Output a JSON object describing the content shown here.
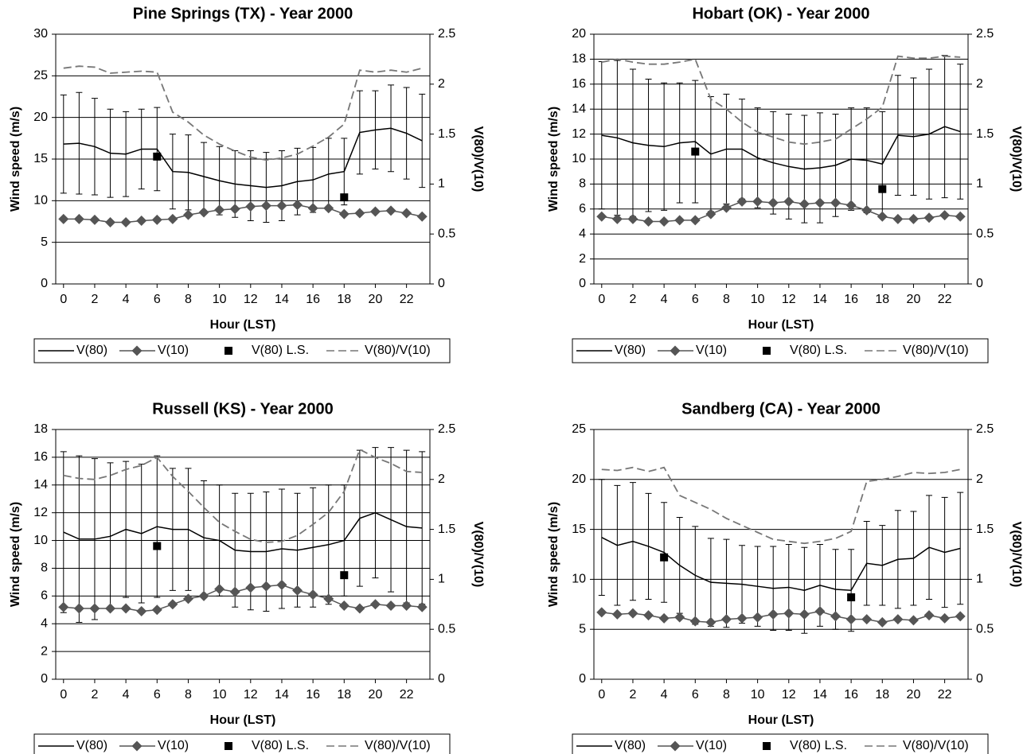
{
  "chart_data": [
    {
      "type": "line",
      "title": "Pine Springs (TX) - Year 2000",
      "xlabel": "Hour (LST)",
      "ylabel": "Wind speed (m/s)",
      "y2label": "V(80)/V(10)",
      "x": [
        0,
        1,
        2,
        3,
        4,
        5,
        6,
        7,
        8,
        9,
        10,
        11,
        12,
        13,
        14,
        15,
        16,
        17,
        18,
        19,
        20,
        21,
        22,
        23
      ],
      "xlim": [
        -0.5,
        23.5
      ],
      "xticks": [
        0,
        2,
        4,
        6,
        8,
        10,
        12,
        14,
        16,
        18,
        20,
        22
      ],
      "ylim": [
        0,
        30
      ],
      "yticks": [
        0,
        5,
        10,
        15,
        20,
        25,
        30
      ],
      "y2lim": [
        0,
        2.5
      ],
      "y2ticks": [
        0,
        0.5,
        1,
        1.5,
        2,
        2.5
      ],
      "grid": true,
      "legend": "bottom",
      "series": [
        {
          "name": "V(80)",
          "color": "#000000",
          "line": "solid",
          "marker": "none",
          "values": [
            16.8,
            16.9,
            16.5,
            15.7,
            15.6,
            16.2,
            16.2,
            13.5,
            13.4,
            12.9,
            12.4,
            12.0,
            11.8,
            11.6,
            11.8,
            12.3,
            12.5,
            13.2,
            13.5,
            18.2,
            18.5,
            18.7,
            18.1,
            17.2
          ],
          "errors": [
            5.9,
            6.1,
            5.8,
            5.3,
            5.1,
            4.8,
            5.0,
            4.5,
            4.5,
            4.1,
            4.1,
            4.0,
            4.2,
            4.2,
            4.2,
            4.0,
            3.9,
            4.3,
            4.0,
            5.0,
            4.7,
            5.2,
            5.5,
            5.6
          ]
        },
        {
          "name": "V(10)",
          "color": "#555555",
          "line": "solid",
          "marker": "diamond",
          "values": [
            7.8,
            7.8,
            7.7,
            7.4,
            7.4,
            7.6,
            7.7,
            7.8,
            8.3,
            8.6,
            8.9,
            9.0,
            9.3,
            9.4,
            9.4,
            9.5,
            9.1,
            9.1,
            8.4,
            8.5,
            8.7,
            8.8,
            8.5,
            8.1
          ]
        },
        {
          "name": "V(80) L.S.",
          "color": "#000000",
          "line": "none",
          "marker": "square",
          "values": [
            null,
            null,
            null,
            null,
            null,
            null,
            15.3,
            null,
            null,
            null,
            null,
            null,
            null,
            null,
            null,
            null,
            null,
            null,
            10.4,
            null,
            null,
            null,
            null,
            null
          ]
        },
        {
          "name": "V(80)/V(10)",
          "color": "#777777",
          "line": "dashed",
          "marker": "none",
          "axis": "y2",
          "values": [
            2.16,
            2.18,
            2.17,
            2.11,
            2.12,
            2.13,
            2.12,
            1.72,
            1.62,
            1.49,
            1.4,
            1.33,
            1.27,
            1.24,
            1.26,
            1.3,
            1.38,
            1.47,
            1.6,
            2.14,
            2.12,
            2.14,
            2.12,
            2.16
          ]
        }
      ]
    },
    {
      "type": "line",
      "title": "Hobart (OK) - Year 2000",
      "xlabel": "Hour (LST)",
      "ylabel": "Wind speed (m/s)",
      "y2label": "V(80)/V(10)",
      "x": [
        0,
        1,
        2,
        3,
        4,
        5,
        6,
        7,
        8,
        9,
        10,
        11,
        12,
        13,
        14,
        15,
        16,
        17,
        18,
        19,
        20,
        21,
        22,
        23
      ],
      "xlim": [
        -0.5,
        23.5
      ],
      "xticks": [
        0,
        2,
        4,
        6,
        8,
        10,
        12,
        14,
        16,
        18,
        20,
        22
      ],
      "ylim": [
        0,
        20
      ],
      "yticks": [
        0,
        2,
        4,
        6,
        8,
        10,
        12,
        14,
        16,
        18,
        20
      ],
      "y2lim": [
        0,
        2.5
      ],
      "y2ticks": [
        0,
        0.5,
        1,
        1.5,
        2,
        2.5
      ],
      "grid": true,
      "legend": "bottom",
      "series": [
        {
          "name": "V(80)",
          "color": "#000000",
          "line": "solid",
          "marker": "none",
          "values": [
            11.9,
            11.7,
            11.3,
            11.1,
            11.0,
            11.3,
            11.4,
            10.4,
            10.8,
            10.8,
            10.1,
            9.7,
            9.4,
            9.2,
            9.3,
            9.5,
            10.0,
            9.9,
            9.6,
            11.9,
            11.8,
            12.0,
            12.6,
            12.2
          ],
          "errors": [
            5.9,
            6.2,
            5.9,
            5.3,
            5.1,
            4.8,
            4.9,
            4.6,
            4.4,
            4.0,
            4.0,
            4.1,
            4.2,
            4.3,
            4.4,
            4.1,
            4.1,
            4.2,
            4.2,
            4.8,
            4.7,
            5.2,
            5.7,
            5.4
          ]
        },
        {
          "name": "V(10)",
          "color": "#555555",
          "line": "solid",
          "marker": "diamond",
          "values": [
            5.4,
            5.2,
            5.2,
            5.0,
            5.0,
            5.1,
            5.1,
            5.6,
            6.1,
            6.6,
            6.6,
            6.5,
            6.6,
            6.4,
            6.5,
            6.5,
            6.3,
            5.9,
            5.4,
            5.2,
            5.2,
            5.3,
            5.5,
            5.4
          ]
        },
        {
          "name": "V(80) L.S.",
          "color": "#000000",
          "line": "none",
          "marker": "square",
          "values": [
            null,
            null,
            null,
            null,
            null,
            null,
            10.6,
            null,
            null,
            null,
            null,
            null,
            null,
            null,
            null,
            null,
            null,
            null,
            7.6,
            null,
            null,
            null,
            null,
            null
          ]
        },
        {
          "name": "V(80)/V(10)",
          "color": "#777777",
          "line": "dashed",
          "marker": "none",
          "axis": "y2",
          "values": [
            2.22,
            2.25,
            2.22,
            2.2,
            2.2,
            2.22,
            2.25,
            1.85,
            1.75,
            1.62,
            1.52,
            1.47,
            1.42,
            1.4,
            1.42,
            1.45,
            1.55,
            1.65,
            1.77,
            2.28,
            2.26,
            2.26,
            2.28,
            2.27
          ]
        }
      ]
    },
    {
      "type": "line",
      "title": "Russell (KS) - Year 2000",
      "xlabel": "Hour (LST)",
      "ylabel": "Wind speed (m/s)",
      "y2label": "V(80)/V(10)",
      "x": [
        0,
        1,
        2,
        3,
        4,
        5,
        6,
        7,
        8,
        9,
        10,
        11,
        12,
        13,
        14,
        15,
        16,
        17,
        18,
        19,
        20,
        21,
        22,
        23
      ],
      "xlim": [
        -0.5,
        23.5
      ],
      "xticks": [
        0,
        2,
        4,
        6,
        8,
        10,
        12,
        14,
        16,
        18,
        20,
        22
      ],
      "ylim": [
        0,
        18
      ],
      "yticks": [
        0,
        2,
        4,
        6,
        8,
        10,
        12,
        14,
        16,
        18
      ],
      "y2lim": [
        0,
        2.5
      ],
      "y2ticks": [
        0,
        0.5,
        1,
        1.5,
        2,
        2.5
      ],
      "grid": true,
      "legend": "bottom",
      "series": [
        {
          "name": "V(80)",
          "color": "#000000",
          "line": "solid",
          "marker": "none",
          "values": [
            10.6,
            10.1,
            10.1,
            10.3,
            10.8,
            10.5,
            11.0,
            10.8,
            10.8,
            10.2,
            10.0,
            9.3,
            9.2,
            9.2,
            9.4,
            9.3,
            9.5,
            9.7,
            10.0,
            11.6,
            12.0,
            11.5,
            11.0,
            10.9
          ],
          "errors": [
            5.8,
            6.0,
            5.8,
            5.3,
            4.9,
            5.0,
            5.1,
            4.4,
            4.4,
            4.1,
            4.0,
            4.1,
            4.2,
            4.3,
            4.3,
            4.1,
            4.3,
            4.3,
            4.0,
            4.9,
            4.7,
            5.2,
            5.5,
            5.5
          ]
        },
        {
          "name": "V(10)",
          "color": "#555555",
          "line": "solid",
          "marker": "diamond",
          "values": [
            5.2,
            5.1,
            5.1,
            5.1,
            5.1,
            4.9,
            5.0,
            5.4,
            5.8,
            6.0,
            6.5,
            6.3,
            6.6,
            6.7,
            6.8,
            6.4,
            6.1,
            5.8,
            5.3,
            5.1,
            5.4,
            5.3,
            5.3,
            5.2
          ]
        },
        {
          "name": "V(80) L.S.",
          "color": "#000000",
          "line": "none",
          "marker": "square",
          "values": [
            null,
            null,
            null,
            null,
            null,
            null,
            9.6,
            null,
            null,
            null,
            null,
            null,
            null,
            null,
            null,
            null,
            null,
            null,
            7.5,
            null,
            null,
            null,
            null,
            null
          ]
        },
        {
          "name": "V(80)/V(10)",
          "color": "#777777",
          "line": "dashed",
          "marker": "none",
          "axis": "y2",
          "values": [
            2.04,
            2.01,
            2.0,
            2.04,
            2.1,
            2.14,
            2.22,
            2.03,
            1.88,
            1.72,
            1.57,
            1.48,
            1.4,
            1.37,
            1.38,
            1.44,
            1.55,
            1.67,
            1.88,
            2.3,
            2.22,
            2.16,
            2.08,
            2.07
          ]
        }
      ]
    },
    {
      "type": "line",
      "title": "Sandberg (CA) - Year 2000",
      "xlabel": "Hour (LST)",
      "ylabel": "Wind speed (m/s)",
      "y2label": "V(80)/V(10)",
      "x": [
        0,
        1,
        2,
        3,
        4,
        5,
        6,
        7,
        8,
        9,
        10,
        11,
        12,
        13,
        14,
        15,
        16,
        17,
        18,
        19,
        20,
        21,
        22,
        23
      ],
      "xlim": [
        -0.5,
        23.5
      ],
      "xticks": [
        0,
        2,
        4,
        6,
        8,
        10,
        12,
        14,
        16,
        18,
        20,
        22
      ],
      "ylim": [
        0,
        25
      ],
      "yticks": [
        0,
        5,
        10,
        15,
        20,
        25
      ],
      "y2lim": [
        0,
        2.5
      ],
      "y2ticks": [
        0,
        0.5,
        1,
        1.5,
        2,
        2.5
      ],
      "grid": true,
      "legend": "bottom",
      "series": [
        {
          "name": "V(80)",
          "color": "#000000",
          "line": "solid",
          "marker": "none",
          "values": [
            14.2,
            13.4,
            13.8,
            13.3,
            12.7,
            11.4,
            10.4,
            9.7,
            9.6,
            9.5,
            9.3,
            9.1,
            9.2,
            8.9,
            9.4,
            9.0,
            8.9,
            11.6,
            11.4,
            12.0,
            12.1,
            13.2,
            12.7,
            13.1
          ],
          "errors": [
            5.8,
            6.0,
            5.9,
            5.3,
            5.0,
            4.8,
            4.9,
            4.4,
            4.4,
            3.9,
            4.0,
            4.2,
            4.3,
            4.3,
            4.1,
            4.0,
            4.1,
            4.2,
            4.0,
            4.9,
            4.7,
            5.2,
            5.5,
            5.6
          ]
        },
        {
          "name": "V(10)",
          "color": "#555555",
          "line": "solid",
          "marker": "diamond",
          "values": [
            6.7,
            6.5,
            6.6,
            6.4,
            6.1,
            6.2,
            5.8,
            5.7,
            6.0,
            6.1,
            6.2,
            6.5,
            6.6,
            6.5,
            6.8,
            6.3,
            6.0,
            6.0,
            5.7,
            6.0,
            5.9,
            6.4,
            6.1,
            6.3
          ]
        },
        {
          "name": "V(80) L.S.",
          "color": "#000000",
          "line": "none",
          "marker": "square",
          "values": [
            null,
            null,
            null,
            null,
            12.2,
            null,
            null,
            null,
            null,
            null,
            null,
            null,
            null,
            null,
            null,
            null,
            8.2,
            null,
            null,
            null,
            null,
            null,
            null,
            null
          ]
        },
        {
          "name": "V(80)/V(10)",
          "color": "#777777",
          "line": "dashed",
          "marker": "none",
          "axis": "y2",
          "values": [
            2.1,
            2.09,
            2.12,
            2.08,
            2.12,
            1.84,
            1.77,
            1.7,
            1.61,
            1.54,
            1.47,
            1.4,
            1.38,
            1.36,
            1.38,
            1.41,
            1.48,
            1.98,
            2.0,
            2.03,
            2.07,
            2.06,
            2.07,
            2.1
          ]
        }
      ]
    }
  ]
}
